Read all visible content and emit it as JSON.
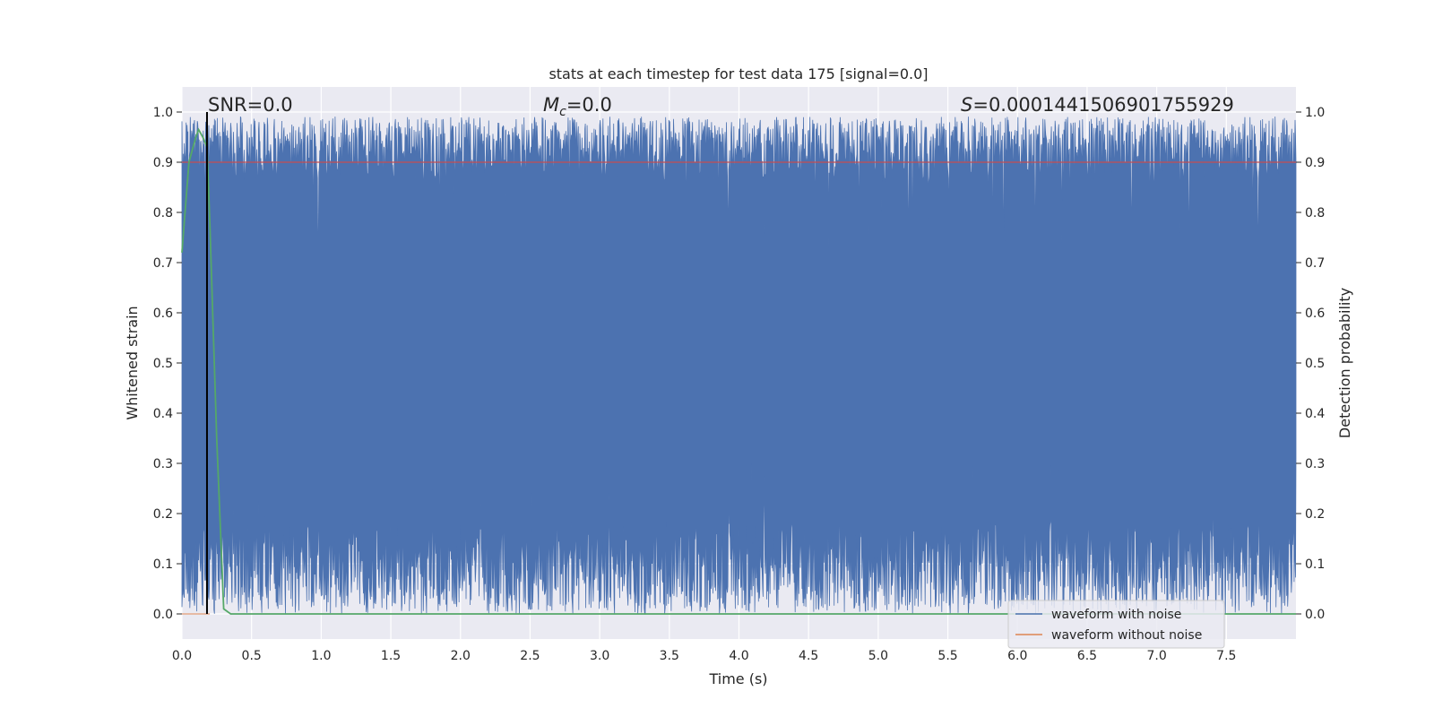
{
  "chart_data": {
    "type": "line",
    "title": "stats at each timestep for test data 175 [signal=0.0]",
    "xlabel": "Time (s)",
    "ylabel_left": "Whitened strain",
    "ylabel_right": "Detection probability",
    "xlim": [
      0.0,
      8.0
    ],
    "ylim": [
      -0.05,
      1.05
    ],
    "x_ticks": [
      0.0,
      0.5,
      1.0,
      1.5,
      2.0,
      2.5,
      3.0,
      3.5,
      4.0,
      4.5,
      5.0,
      5.5,
      6.0,
      6.5,
      7.0,
      7.5
    ],
    "x_tick_labels": [
      "0.0",
      "0.5",
      "1.0",
      "1.5",
      "2.0",
      "2.5",
      "3.0",
      "3.5",
      "4.0",
      "4.5",
      "5.0",
      "5.5",
      "6.0",
      "6.5",
      "7.0",
      "7.5"
    ],
    "y_ticks": [
      0.0,
      0.1,
      0.2,
      0.3,
      0.4,
      0.5,
      0.6,
      0.7,
      0.8,
      0.9,
      1.0
    ],
    "y_tick_labels": [
      "0.0",
      "0.1",
      "0.2",
      "0.3",
      "0.4",
      "0.5",
      "0.6",
      "0.7",
      "0.8",
      "0.9",
      "1.0"
    ],
    "grid": true,
    "legend_position": "lower-right",
    "annotations": {
      "snr": "SNR=0.0",
      "mc_symbol": "M",
      "mc_sub": "c",
      "mc_value": "=0.0",
      "s_symbol": "S",
      "s_value": "=0.0001441506901755929"
    },
    "series": [
      {
        "name": "waveform with noise",
        "color": "#4c72b0",
        "description_values": "dense noise band between approximately 0.0 and 1.0",
        "band_low_typical": 0.1,
        "band_high_typical": 0.9
      },
      {
        "name": "waveform without noise",
        "color": "#dd8452",
        "values": [
          0.0,
          0.0
        ]
      },
      {
        "color": "#55a868",
        "x": [
          0.0,
          0.05,
          0.1,
          0.12,
          0.15,
          0.18,
          0.2,
          0.25,
          0.3,
          0.35,
          0.4,
          8.0
        ],
        "values": [
          0.72,
          0.9,
          0.95,
          0.965,
          0.95,
          0.93,
          0.78,
          0.35,
          0.01,
          0.0,
          0.0,
          0.0
        ]
      }
    ],
    "threshold_line": {
      "value": 0.9,
      "color": "#c44e52"
    },
    "marker_line": {
      "x": 0.18,
      "color": "#000000"
    }
  }
}
